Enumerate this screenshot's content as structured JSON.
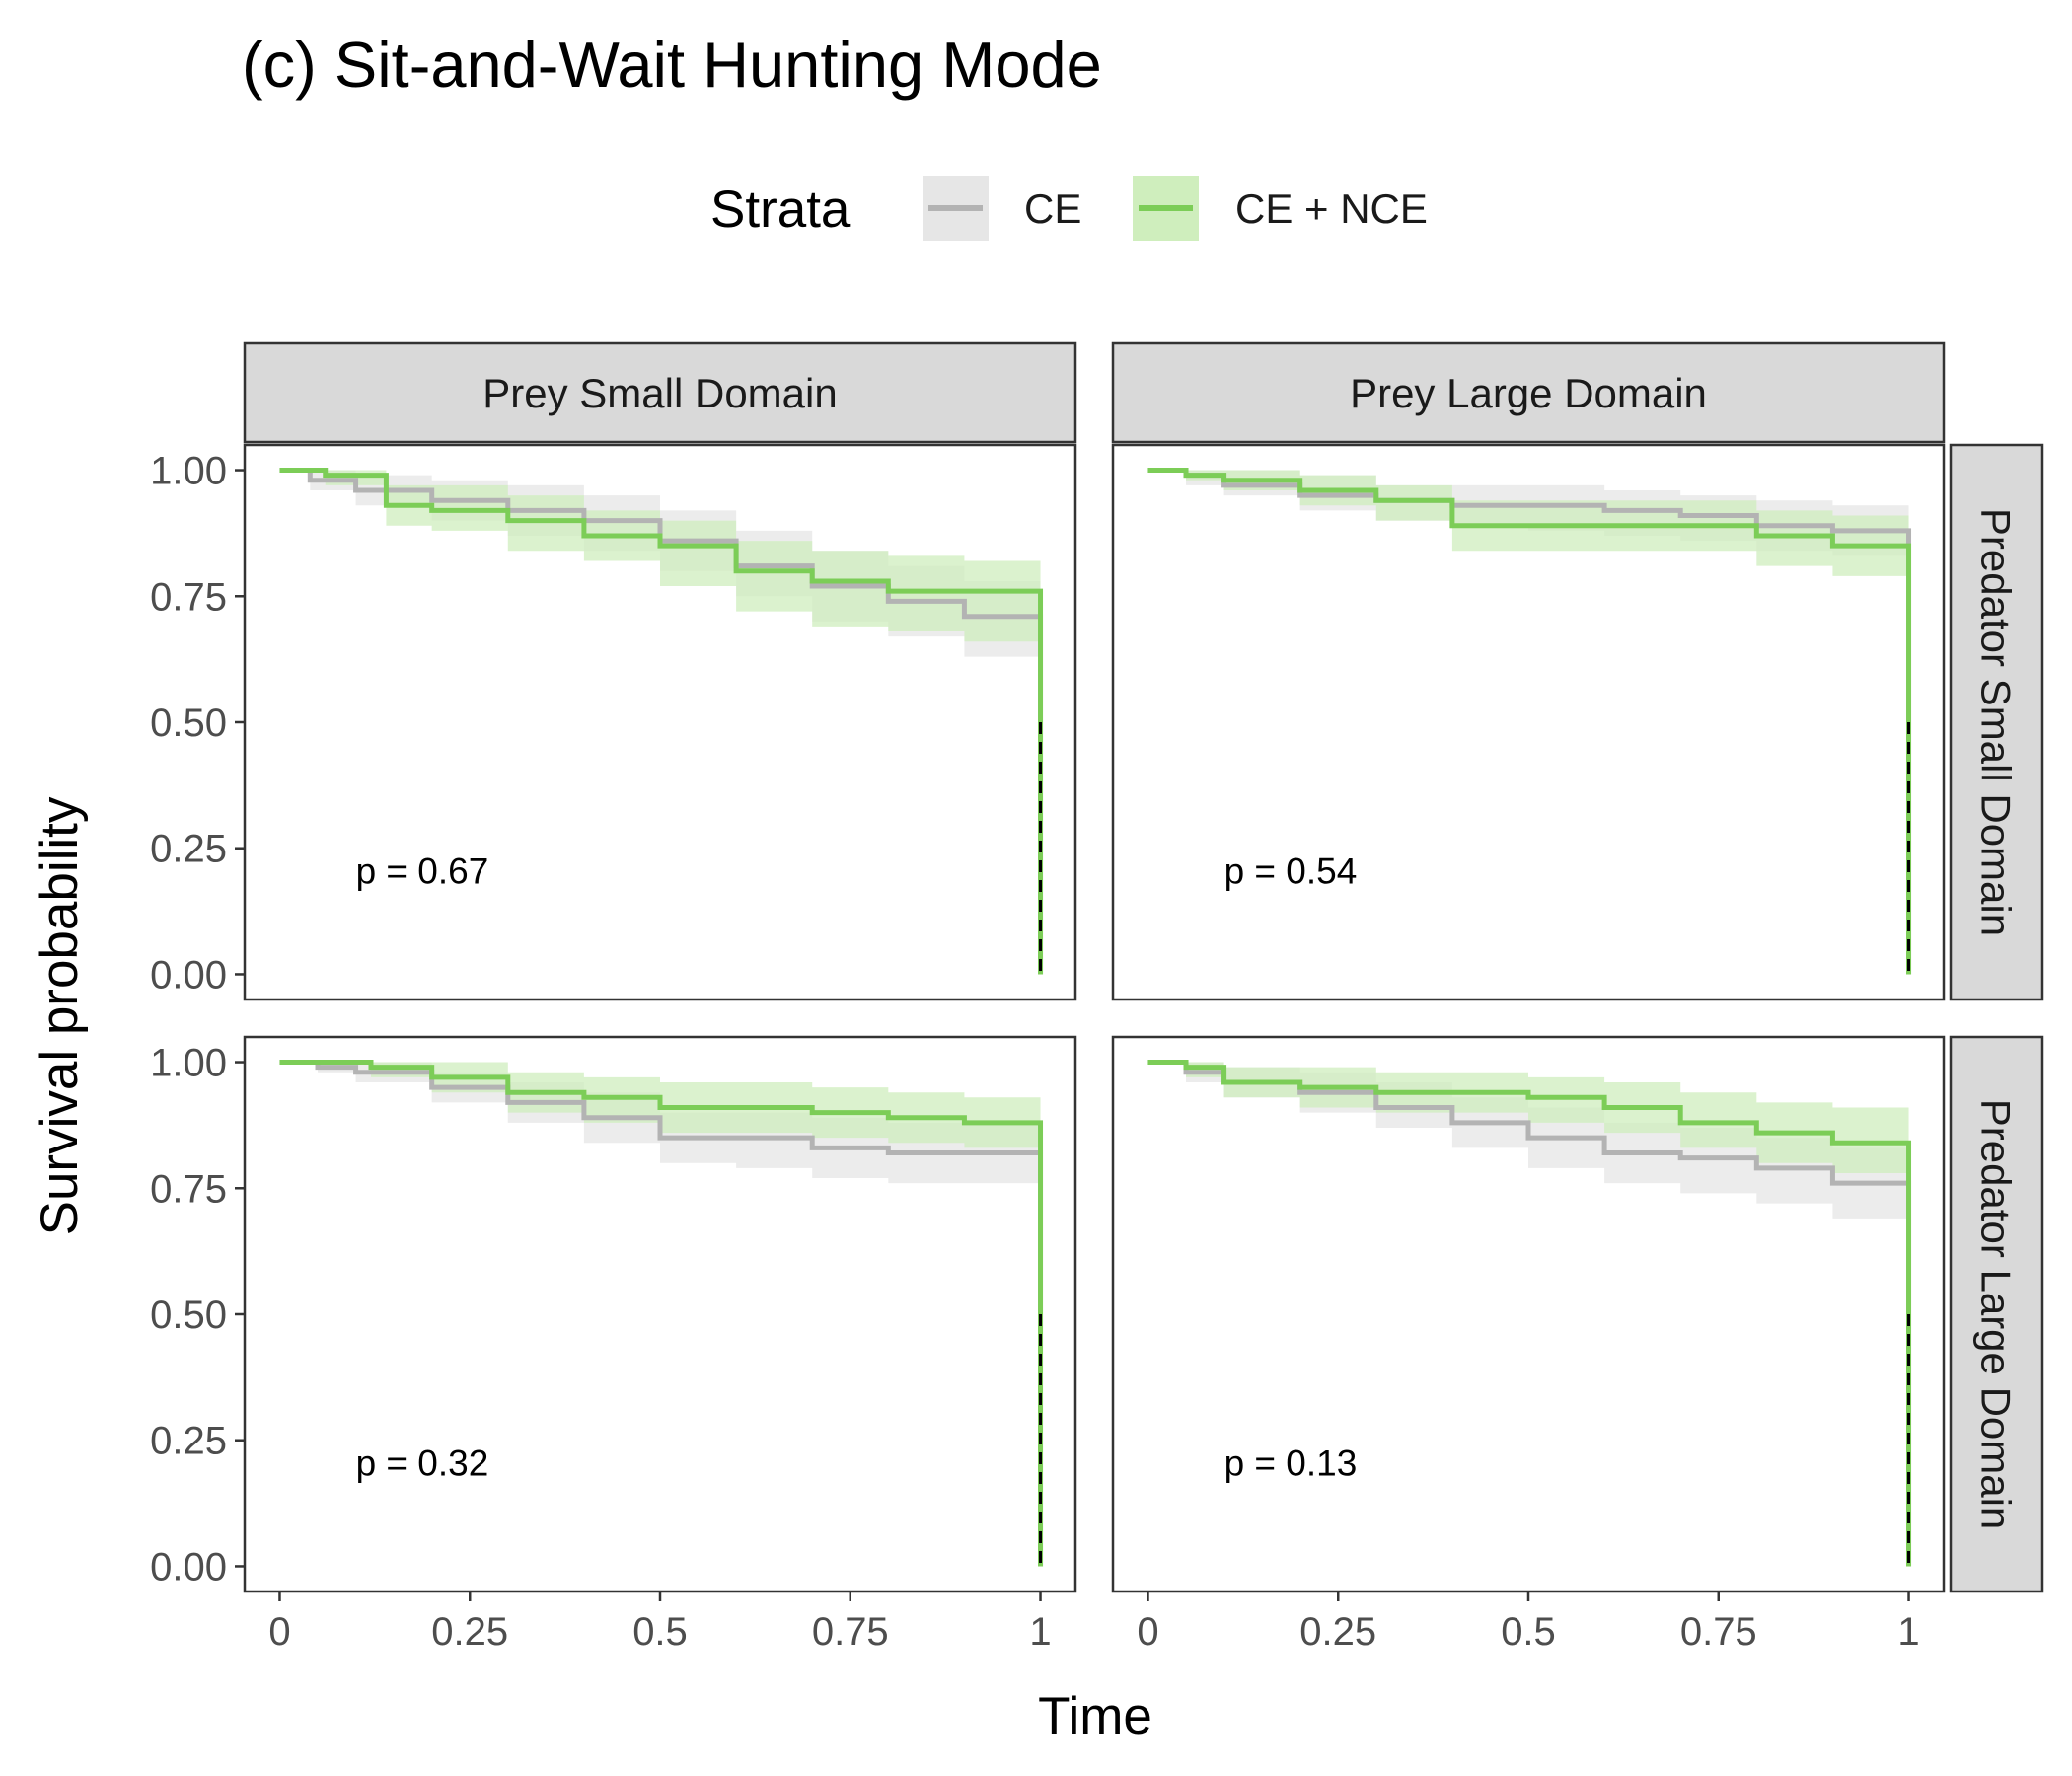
{
  "chart_data": {
    "type": "line",
    "title": "(c) Sit-and-Wait Hunting Mode",
    "xlabel": "Time",
    "ylabel": "Survival probability",
    "xlim": [
      0,
      1
    ],
    "ylim": [
      0,
      1
    ],
    "x_tick_labels": [
      "0",
      "0.25",
      "0.5",
      "0.75",
      "1"
    ],
    "y_tick_labels": [
      "0.00",
      "0.25",
      "0.50",
      "0.75",
      "1.00"
    ],
    "legend": {
      "title": "Strata",
      "position": "top",
      "entries": [
        {
          "label": "CE",
          "color": "#b3b3b3",
          "fill": "#e6e6e6"
        },
        {
          "label": "CE + NCE",
          "color": "#7ccd57",
          "fill": "#cfeebd"
        }
      ]
    },
    "facet_columns": [
      "Prey Small Domain",
      "Prey Large Domain"
    ],
    "facet_rows": [
      "Predator Small Domain",
      "Predator Large Domain"
    ],
    "median_reference_line": {
      "y": 0.5,
      "style": "dashed",
      "color": "#000000"
    },
    "panels": [
      {
        "row": 0,
        "col": 0,
        "p_label": "p = 0.67",
        "series": [
          {
            "name": "CE",
            "x": [
              0,
              0.04,
              0.1,
              0.2,
              0.3,
              0.4,
              0.5,
              0.6,
              0.7,
              0.8,
              0.9,
              1
            ],
            "y": [
              1.0,
              0.98,
              0.96,
              0.94,
              0.92,
              0.9,
              0.86,
              0.81,
              0.77,
              0.74,
              0.71,
              0.71
            ],
            "lower": [
              1.0,
              0.96,
              0.93,
              0.9,
              0.87,
              0.84,
              0.8,
              0.75,
              0.7,
              0.67,
              0.63,
              0.62
            ],
            "upper": [
              1.0,
              1.0,
              0.99,
              0.98,
              0.97,
              0.95,
              0.92,
              0.88,
              0.84,
              0.81,
              0.78,
              0.77
            ]
          },
          {
            "name": "CE + NCE",
            "x": [
              0,
              0.06,
              0.14,
              0.2,
              0.3,
              0.4,
              0.5,
              0.6,
              0.7,
              0.8,
              0.9,
              1
            ],
            "y": [
              1.0,
              0.99,
              0.93,
              0.92,
              0.9,
              0.87,
              0.85,
              0.8,
              0.78,
              0.76,
              0.76,
              0.73
            ],
            "lower": [
              1.0,
              0.97,
              0.89,
              0.88,
              0.84,
              0.82,
              0.77,
              0.72,
              0.69,
              0.68,
              0.66,
              0.64
            ],
            "upper": [
              1.0,
              1.0,
              0.97,
              0.97,
              0.95,
              0.92,
              0.9,
              0.86,
              0.84,
              0.83,
              0.82,
              0.8
            ]
          }
        ]
      },
      {
        "row": 0,
        "col": 1,
        "p_label": "p = 0.54",
        "series": [
          {
            "name": "CE",
            "x": [
              0,
              0.05,
              0.1,
              0.2,
              0.3,
              0.4,
              0.5,
              0.6,
              0.7,
              0.8,
              0.9,
              1
            ],
            "y": [
              1.0,
              0.99,
              0.97,
              0.95,
              0.94,
              0.93,
              0.93,
              0.92,
              0.91,
              0.89,
              0.88,
              0.88
            ],
            "lower": [
              1.0,
              0.97,
              0.95,
              0.92,
              0.9,
              0.89,
              0.88,
              0.87,
              0.86,
              0.84,
              0.83,
              0.82
            ],
            "upper": [
              1.0,
              1.0,
              1.0,
              0.99,
              0.97,
              0.97,
              0.97,
              0.96,
              0.95,
              0.94,
              0.93,
              0.93
            ]
          },
          {
            "name": "CE + NCE",
            "x": [
              0,
              0.05,
              0.1,
              0.2,
              0.3,
              0.4,
              0.5,
              0.6,
              0.7,
              0.8,
              0.9,
              1
            ],
            "y": [
              1.0,
              0.99,
              0.98,
              0.96,
              0.94,
              0.89,
              0.89,
              0.89,
              0.89,
              0.87,
              0.85,
              0.85
            ],
            "lower": [
              1.0,
              0.98,
              0.96,
              0.93,
              0.9,
              0.84,
              0.84,
              0.84,
              0.84,
              0.81,
              0.79,
              0.79
            ],
            "upper": [
              1.0,
              1.0,
              1.0,
              0.99,
              0.97,
              0.94,
              0.94,
              0.94,
              0.94,
              0.92,
              0.91,
              0.91
            ]
          }
        ]
      },
      {
        "row": 1,
        "col": 0,
        "p_label": "p = 0.32",
        "series": [
          {
            "name": "CE",
            "x": [
              0,
              0.05,
              0.1,
              0.2,
              0.3,
              0.4,
              0.5,
              0.6,
              0.7,
              0.8,
              0.9,
              1
            ],
            "y": [
              1.0,
              0.99,
              0.98,
              0.95,
              0.92,
              0.89,
              0.85,
              0.85,
              0.83,
              0.82,
              0.82,
              0.8
            ],
            "lower": [
              1.0,
              0.98,
              0.96,
              0.92,
              0.88,
              0.84,
              0.8,
              0.79,
              0.77,
              0.76,
              0.76,
              0.74
            ],
            "upper": [
              1.0,
              1.0,
              1.0,
              0.98,
              0.96,
              0.94,
              0.9,
              0.9,
              0.89,
              0.88,
              0.88,
              0.87
            ]
          },
          {
            "name": "CE + NCE",
            "x": [
              0,
              0.06,
              0.12,
              0.2,
              0.3,
              0.4,
              0.5,
              0.6,
              0.7,
              0.8,
              0.9,
              1
            ],
            "y": [
              1.0,
              1.0,
              0.99,
              0.97,
              0.94,
              0.93,
              0.91,
              0.91,
              0.9,
              0.89,
              0.88,
              0.86
            ],
            "lower": [
              1.0,
              1.0,
              0.97,
              0.94,
              0.9,
              0.88,
              0.86,
              0.86,
              0.85,
              0.84,
              0.83,
              0.8
            ],
            "upper": [
              1.0,
              1.0,
              1.0,
              1.0,
              0.98,
              0.97,
              0.96,
              0.96,
              0.95,
              0.94,
              0.93,
              0.92
            ]
          }
        ]
      },
      {
        "row": 1,
        "col": 1,
        "p_label": "p = 0.13",
        "series": [
          {
            "name": "CE",
            "x": [
              0,
              0.05,
              0.1,
              0.2,
              0.3,
              0.4,
              0.5,
              0.6,
              0.7,
              0.8,
              0.9,
              1
            ],
            "y": [
              1.0,
              0.98,
              0.96,
              0.94,
              0.91,
              0.88,
              0.85,
              0.82,
              0.81,
              0.79,
              0.76,
              0.73
            ],
            "lower": [
              1.0,
              0.96,
              0.93,
              0.9,
              0.87,
              0.83,
              0.79,
              0.76,
              0.74,
              0.72,
              0.69,
              0.66
            ],
            "upper": [
              1.0,
              1.0,
              0.99,
              0.98,
              0.96,
              0.93,
              0.91,
              0.88,
              0.87,
              0.85,
              0.83,
              0.81
            ]
          },
          {
            "name": "CE + NCE",
            "x": [
              0,
              0.05,
              0.1,
              0.2,
              0.3,
              0.4,
              0.5,
              0.6,
              0.7,
              0.8,
              0.9,
              1
            ],
            "y": [
              1.0,
              0.99,
              0.96,
              0.95,
              0.94,
              0.94,
              0.93,
              0.91,
              0.88,
              0.86,
              0.84,
              0.83
            ],
            "lower": [
              1.0,
              0.97,
              0.93,
              0.91,
              0.9,
              0.9,
              0.88,
              0.86,
              0.83,
              0.8,
              0.78,
              0.77
            ],
            "upper": [
              1.0,
              1.0,
              0.99,
              0.99,
              0.98,
              0.98,
              0.97,
              0.96,
              0.94,
              0.92,
              0.91,
              0.9
            ]
          }
        ]
      }
    ]
  }
}
